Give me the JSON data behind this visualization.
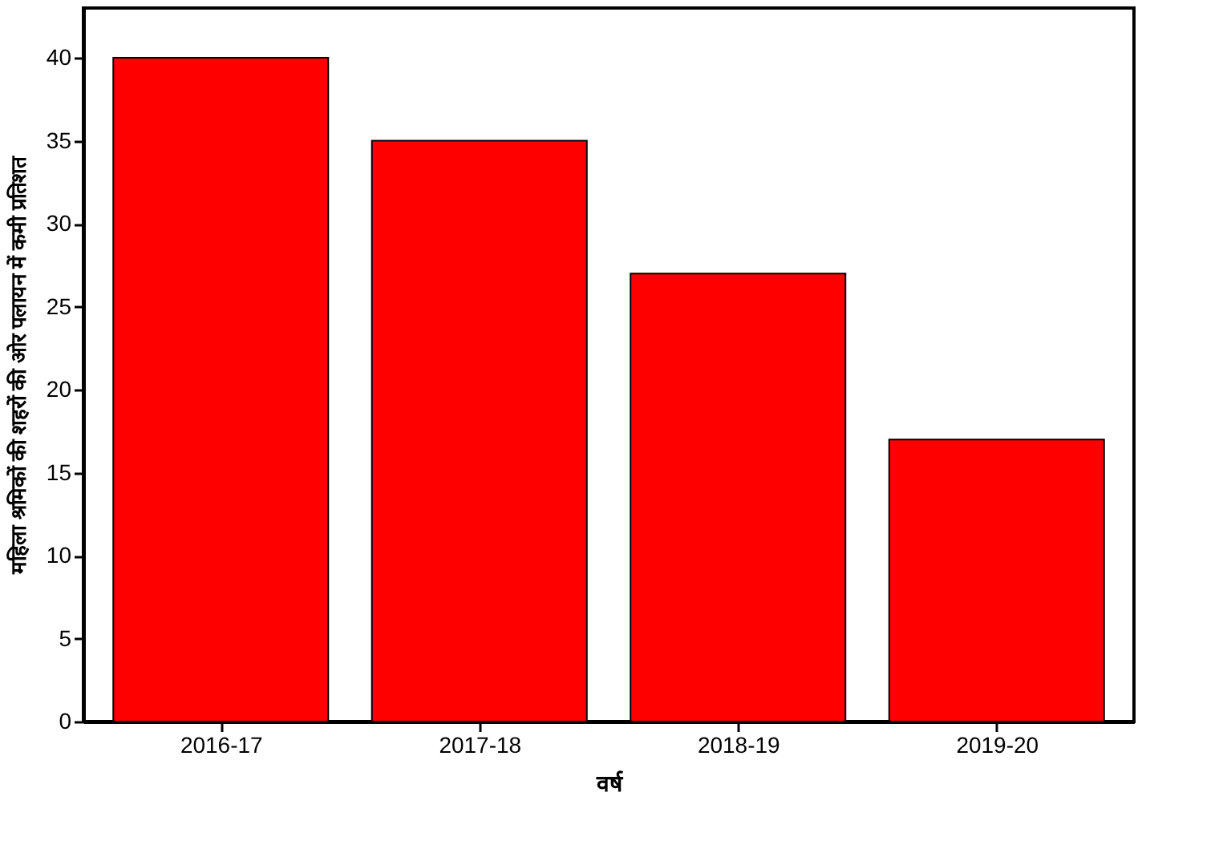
{
  "chart_data": {
    "type": "bar",
    "xlabel": "वर्ष",
    "ylabel": "महिला श्रमिकों की शहरों की ओर पलायन में कमी प्रतिशत",
    "categories": [
      "2016-17",
      "2017-18",
      "2018-19",
      "2019-20"
    ],
    "values": [
      40,
      35,
      27,
      17
    ],
    "color": "#ff0000",
    "ylim": [
      0,
      43
    ],
    "yticks": [
      0,
      5,
      10,
      15,
      20,
      25,
      30,
      35,
      40
    ],
    "grid": false
  }
}
